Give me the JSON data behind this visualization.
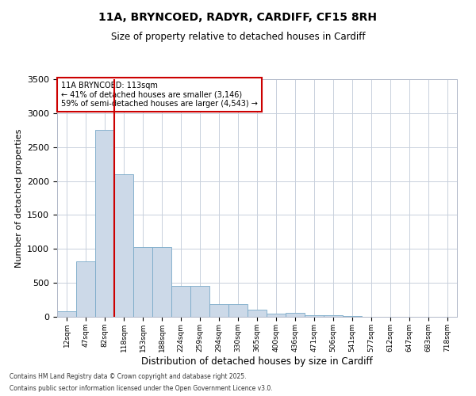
{
  "title_line1": "11A, BRYNCOED, RADYR, CARDIFF, CF15 8RH",
  "title_line2": "Size of property relative to detached houses in Cardiff",
  "xlabel": "Distribution of detached houses by size in Cardiff",
  "ylabel": "Number of detached properties",
  "categories": [
    "12sqm",
    "47sqm",
    "82sqm",
    "118sqm",
    "153sqm",
    "188sqm",
    "224sqm",
    "259sqm",
    "294sqm",
    "330sqm",
    "365sqm",
    "400sqm",
    "436sqm",
    "471sqm",
    "506sqm",
    "541sqm",
    "577sqm",
    "612sqm",
    "647sqm",
    "683sqm",
    "718sqm"
  ],
  "values": [
    80,
    820,
    2750,
    2100,
    1030,
    1030,
    450,
    450,
    190,
    190,
    100,
    50,
    60,
    25,
    20,
    10,
    5,
    5,
    3,
    2,
    2
  ],
  "bar_color": "#ccd9e8",
  "bar_edge_color": "#7aaac8",
  "vline_color": "#cc0000",
  "annotation_text": "11A BRYNCOED: 113sqm\n← 41% of detached houses are smaller (3,146)\n59% of semi-detached houses are larger (4,543) →",
  "annotation_box_color": "#cc0000",
  "ylim": [
    0,
    3500
  ],
  "yticks": [
    0,
    500,
    1000,
    1500,
    2000,
    2500,
    3000,
    3500
  ],
  "background_color": "#ffffff",
  "grid_color": "#c8d0dc",
  "footnote1": "Contains HM Land Registry data © Crown copyright and database right 2025.",
  "footnote2": "Contains public sector information licensed under the Open Government Licence v3.0."
}
